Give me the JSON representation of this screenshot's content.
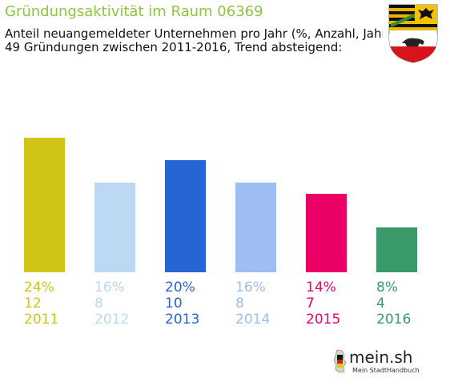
{
  "header": {
    "title": "Gründungsaktivität im Raum 06369",
    "subtitle_line1": "Anteil neuangemeldeter Unternehmen pro Jahr (%, Anzahl, Jahr)",
    "subtitle_line2": "49 Gründungen zwischen 2011-2016, Trend absteigend:"
  },
  "crest": {
    "icon": "coat-of-arms-icon"
  },
  "footer": {
    "logo_text": "mein.sh",
    "logo_sub": "Mein StadtHandbuch",
    "icon": "germany-map-icon"
  },
  "chart_data": {
    "type": "bar",
    "title": "Gründungsaktivität im Raum 06369",
    "categories": [
      "2011",
      "2012",
      "2013",
      "2014",
      "2015",
      "2016"
    ],
    "values": [
      24,
      16,
      20,
      16,
      14,
      8
    ],
    "counts": [
      12,
      8,
      10,
      8,
      7,
      4
    ],
    "percent_labels": [
      "24%",
      "16%",
      "20%",
      "16%",
      "14%",
      "8%"
    ],
    "count_labels": [
      "12",
      "8",
      "10",
      "8",
      "7",
      "4"
    ],
    "colors": [
      "#d0c415",
      "#bcd8f2",
      "#2666d4",
      "#9dbdf3",
      "#ec0266",
      "#3a9a6a"
    ],
    "ylim": [
      0,
      24
    ],
    "grid": false,
    "legend": "none"
  }
}
